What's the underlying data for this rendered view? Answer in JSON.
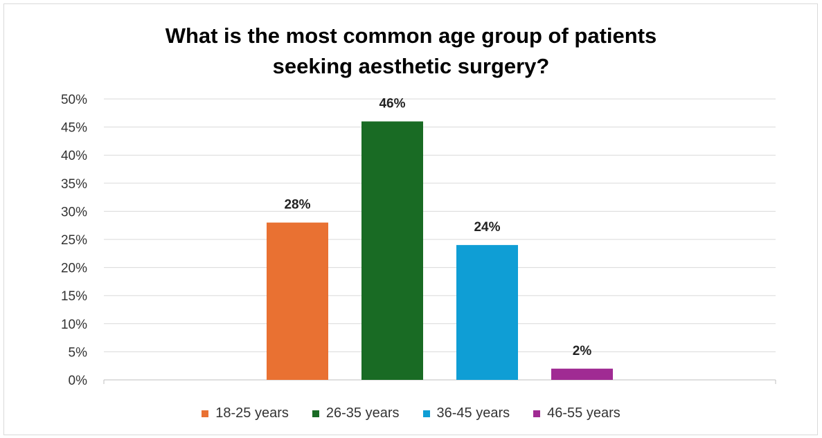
{
  "chart_data": {
    "type": "bar",
    "title": "What is the most common age group of patients seeking aesthetic surgery?",
    "title_lines": [
      "What is the most common age group of patients",
      "seeking aesthetic surgery?"
    ],
    "categories": [
      "18-25 years",
      "26-35 years",
      "36-45 years",
      "46-55 years"
    ],
    "values": [
      28,
      46,
      24,
      2
    ],
    "data_labels": [
      "28%",
      "46%",
      "24%",
      "2%"
    ],
    "colors": [
      "#e97132",
      "#196b24",
      "#0f9ed5",
      "#a02b93"
    ],
    "ylim": [
      0,
      50
    ],
    "yticks": [
      "0%",
      "5%",
      "10%",
      "15%",
      "20%",
      "25%",
      "30%",
      "35%",
      "40%",
      "45%",
      "50%"
    ],
    "grid": true,
    "legend_position": "bottom"
  }
}
